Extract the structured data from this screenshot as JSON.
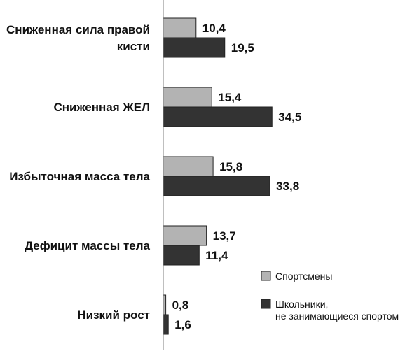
{
  "chart_data": {
    "type": "bar",
    "orientation": "horizontal",
    "categories": [
      [
        "Сниженная сила правой",
        "кисти"
      ],
      [
        "Сниженная ЖЕЛ"
      ],
      [
        "Избыточная масса тела"
      ],
      [
        "Дефицит массы тела"
      ],
      [
        "Низкий рост"
      ]
    ],
    "series": [
      {
        "name": "Спортсмены",
        "color": "#b3b3b3",
        "values": [
          10.4,
          15.4,
          15.8,
          13.7,
          0.8
        ],
        "labels": [
          "10,4",
          "15,4",
          "15,8",
          "13,7",
          "0,8"
        ]
      },
      {
        "name": "Школьники, не занимающиеся спортом",
        "legend_lines": [
          "Школьники,",
          "не занимающиеся спортом"
        ],
        "color": "#333333",
        "values": [
          19.5,
          34.5,
          33.8,
          11.4,
          1.6
        ],
        "labels": [
          "19,5",
          "34,5",
          "33,8",
          "11,4",
          "1,6"
        ]
      }
    ],
    "xlim": [
      0,
      40
    ],
    "grid": false,
    "legend_position": "bottom-right"
  }
}
